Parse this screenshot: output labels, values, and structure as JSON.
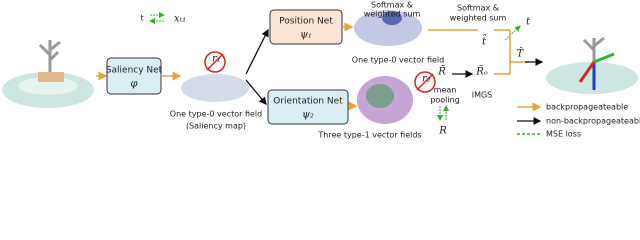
{
  "nodes": [
    {
      "label": "Saliency Net",
      "symbol": "φ"
    },
    {
      "label": "Position Net",
      "symbol": "ψ₁"
    },
    {
      "label": "Orientation Net",
      "symbol": "ψ₂"
    }
  ],
  "annotations": {
    "t_input": "t",
    "x_t1": "xₜ₁",
    "r1": "r₁",
    "r2": "r₂",
    "saliency_field": "One type-0 vector field",
    "saliency_map": "(Saliency map)",
    "softmax_1a": "Softmax &",
    "softmax_1b": "weighted sum",
    "position_field": "One type-0 vector field",
    "softmax_2a": "Softmax &",
    "softmax_2b": "weighted sum",
    "orientation_fields": "Three type-1 vector fields",
    "mean_pooling_a": "mean",
    "mean_pooling_b": "pooling",
    "r_tilde": "R̃",
    "r_tilde_o": "R̃ₒ",
    "imgs": "IMGS",
    "r_gt": "R",
    "t_hat": "t̂",
    "t_gt": "t",
    "T_hat": "T̂"
  },
  "legend": [
    "backpropageateable",
    "non-backpropageateable",
    "MSE loss"
  ]
}
